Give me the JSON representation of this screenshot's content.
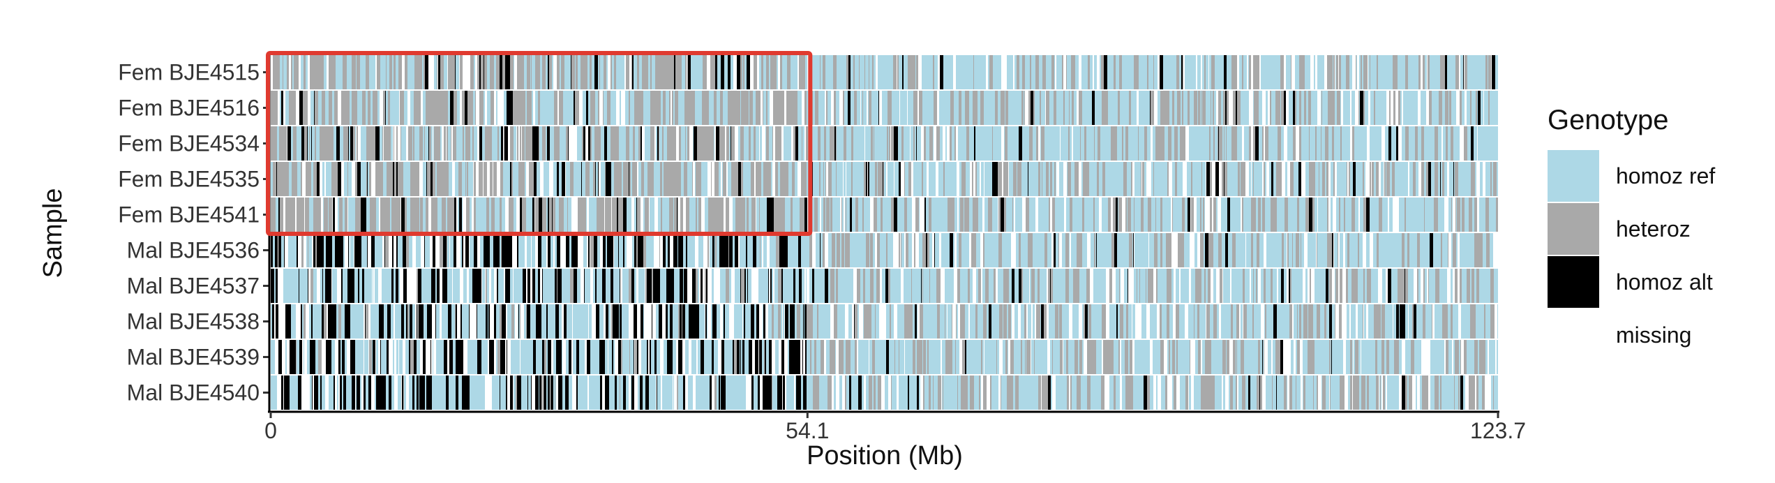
{
  "chart_data": {
    "type": "heatmap",
    "title": "",
    "xlabel": "Position (Mb)",
    "ylabel": "Sample",
    "xlim": [
      0,
      123.7
    ],
    "x_ticks": [
      "0",
      "54.1",
      "123.7"
    ],
    "x_tick_values": [
      0,
      54.1,
      123.7
    ],
    "samples": [
      "Fem BJE4515",
      "Fem BJE4516",
      "Fem BJE4534",
      "Fem BJE4535",
      "Fem BJE4541",
      "Mal BJE4536",
      "Mal BJE4537",
      "Mal BJE4538",
      "Mal BJE4539",
      "Mal BJE4540"
    ],
    "legend": {
      "title": "Genotype",
      "position": "right",
      "items": [
        {
          "label": "homoz ref",
          "color": "#add8e6"
        },
        {
          "label": "heteroz",
          "color": "#a9a9a9"
        },
        {
          "label": "homoz alt",
          "color": "#000000"
        },
        {
          "label": "missing",
          "color": "#ffffff"
        }
      ]
    },
    "highlight": {
      "color": "#e03a2f",
      "x_range": [
        0,
        54.1
      ],
      "samples": [
        "Fem BJE4515",
        "Fem BJE4516",
        "Fem BJE4534",
        "Fem BJE4535",
        "Fem BJE4541"
      ]
    },
    "genotype_proportions": {
      "female_0_to_54.1": {
        "homoz ref": 0.33,
        "heteroz": 0.47,
        "homoz alt": 0.08,
        "missing": 0.12
      },
      "female_54.1_to_123.7": {
        "homoz ref": 0.56,
        "heteroz": 0.27,
        "homoz alt": 0.04,
        "missing": 0.13
      },
      "male_0_to_54.1": {
        "homoz ref": 0.44,
        "heteroz": 0.06,
        "homoz alt": 0.32,
        "missing": 0.18
      },
      "male_54.1_to_123.7": {
        "homoz ref": 0.55,
        "heteroz": 0.27,
        "homoz alt": 0.03,
        "missing": 0.15
      }
    }
  }
}
